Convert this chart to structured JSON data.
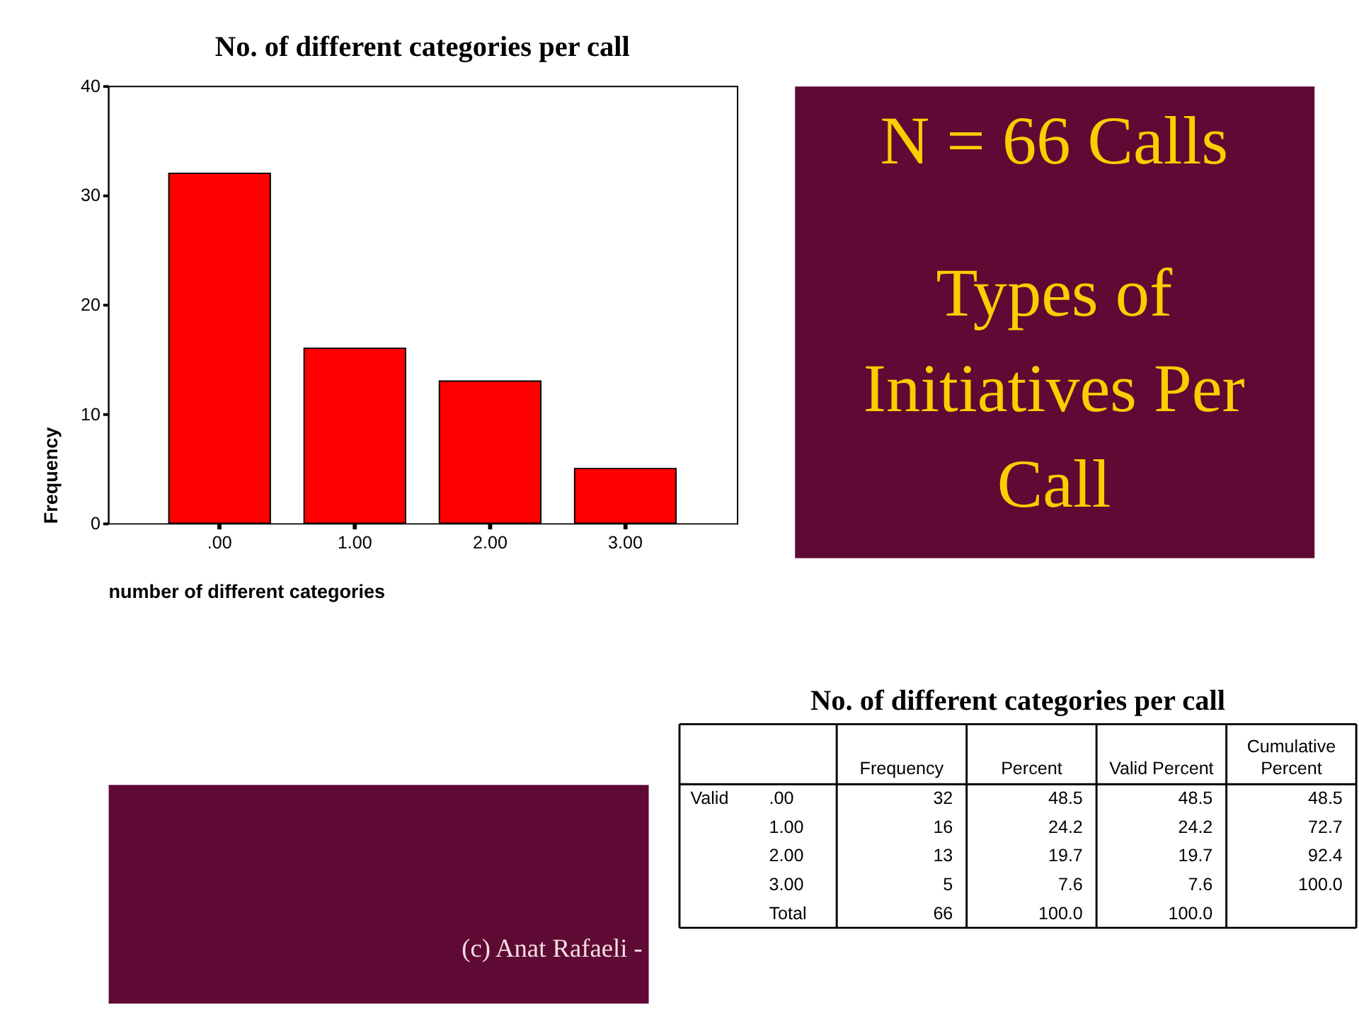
{
  "chart_data": [
    {
      "type": "bar",
      "title": "No. of different categories per call",
      "categories": [
        ".00",
        "1.00",
        "2.00",
        "3.00"
      ],
      "values": [
        32,
        16,
        13,
        5
      ],
      "color": "#ff0000",
      "xlabel": "number of different categories",
      "ylabel": "Frequency",
      "ylim": [
        0,
        40
      ],
      "yticks": [
        0,
        10,
        20,
        30,
        40
      ],
      "grid": false
    },
    {
      "type": "other",
      "title": "N = 66 Calls",
      "subtitle": "Types of Initiatives Per Call",
      "annotations": [
        "(c) Anat Rafaeli -"
      ]
    },
    {
      "type": "heatmap",
      "title": "No. of different categories per call",
      "categories": [
        "Frequency",
        "Percent",
        "Valid Percent",
        "Cumulative Percent"
      ],
      "y_categories": [
        ".00",
        "1.00",
        "2.00",
        "3.00",
        "Total"
      ],
      "cells": [
        [
          32,
          48.5,
          48.5,
          48.5
        ],
        [
          16,
          24.2,
          24.2,
          72.7
        ],
        [
          13,
          19.7,
          19.7,
          92.4
        ],
        [
          5,
          7.6,
          7.6,
          100
        ],
        [
          66,
          100,
          100,
          null
        ]
      ],
      "cell_labels": [
        [
          "32",
          "48.5",
          "48.5",
          "48.5"
        ],
        [
          "16",
          "24.2",
          "24.2",
          "72.7"
        ],
        [
          "13",
          "19.7",
          "19.7",
          "92.4"
        ],
        [
          "5",
          "7.6",
          "7.6",
          "100.0"
        ],
        [
          "66",
          "100.0",
          "100.0",
          null
        ]
      ],
      "data_labels": true,
      "annotations": [
        "Valid"
      ]
    }
  ]
}
